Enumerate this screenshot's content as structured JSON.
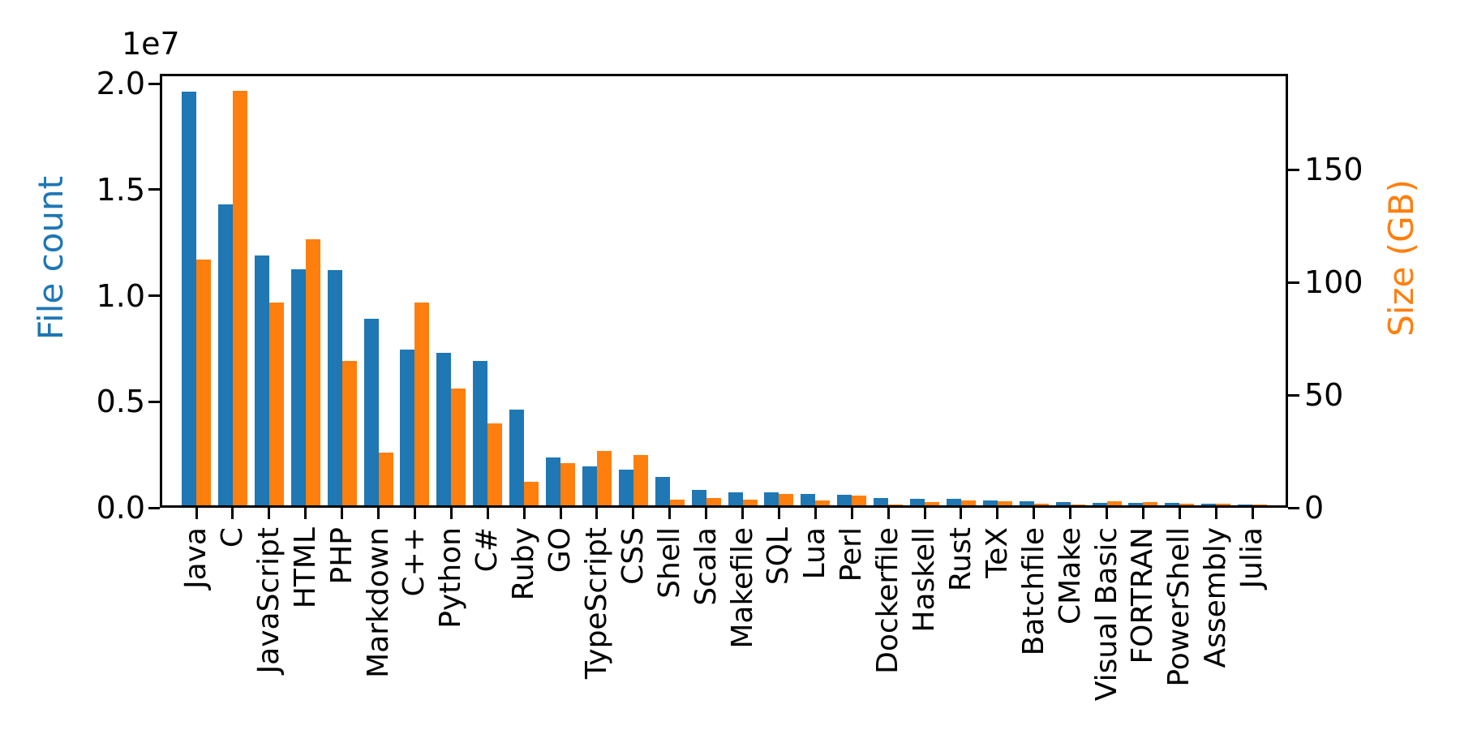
{
  "figure": {
    "offset_label": "1e7",
    "left_axis_title": "File count",
    "right_axis_title": "Size (GB)",
    "colors": {
      "file_count": "#1f77b4",
      "size_gb": "#ff7f0e",
      "axis": "#000000"
    }
  },
  "chart_data": {
    "type": "bar",
    "categories": [
      "Java",
      "C",
      "JavaScript",
      "HTML",
      "PHP",
      "Markdown",
      "C++",
      "Python",
      "C#",
      "Ruby",
      "GO",
      "TypeScript",
      "CSS",
      "Shell",
      "Scala",
      "Makefile",
      "SQL",
      "Lua",
      "Perl",
      "Dockerfile",
      "Haskell",
      "Rust",
      "TeX",
      "Batchfile",
      "CMake",
      "Visual Basic",
      "FORTRAN",
      "PowerShell",
      "Assembly",
      "Julia"
    ],
    "series": [
      {
        "name": "File count",
        "axis": "left",
        "color": "#1f77b4",
        "values": [
          19500000,
          14200000,
          11800000,
          11150000,
          11100000,
          8800000,
          7350000,
          7200000,
          6800000,
          4500000,
          2250000,
          1850000,
          1700000,
          1350000,
          740000,
          610000,
          610000,
          520000,
          490000,
          330000,
          320000,
          300000,
          230000,
          210000,
          150000,
          120000,
          100000,
          100000,
          70000,
          50000
        ]
      },
      {
        "name": "Size (GB)",
        "axis": "right",
        "color": "#ff7f0e",
        "values": [
          109,
          184,
          90,
          118,
          64,
          23.5,
          90,
          52,
          36.5,
          10.6,
          18.8,
          24,
          22.2,
          2.7,
          3.3,
          2.6,
          4.9,
          2.3,
          4.5,
          0.4,
          1.6,
          2.2,
          1.7,
          0.7,
          0.5,
          1.8,
          1.6,
          0.6,
          0.6,
          0.3
        ]
      }
    ],
    "left_axis": {
      "label": "File count",
      "offset_text": "1e7",
      "tick_values": [
        0,
        5000000,
        10000000,
        15000000,
        20000000
      ],
      "tick_labels": [
        "0.0",
        "0.5",
        "1.0",
        "1.5",
        "2.0"
      ],
      "range": [
        0,
        20430000
      ]
    },
    "right_axis": {
      "label": "Size (GB)",
      "tick_values": [
        0,
        50,
        100,
        150
      ],
      "tick_labels": [
        "0",
        "50",
        "100",
        "150"
      ],
      "range": [
        0,
        192.3
      ]
    },
    "xlabel": "",
    "ylabel_left": "File count",
    "ylabel_right": "Size (GB)",
    "grid": false,
    "legend_position": "none",
    "bar_orientation": "vertical",
    "x_tick_rotation": 90
  }
}
